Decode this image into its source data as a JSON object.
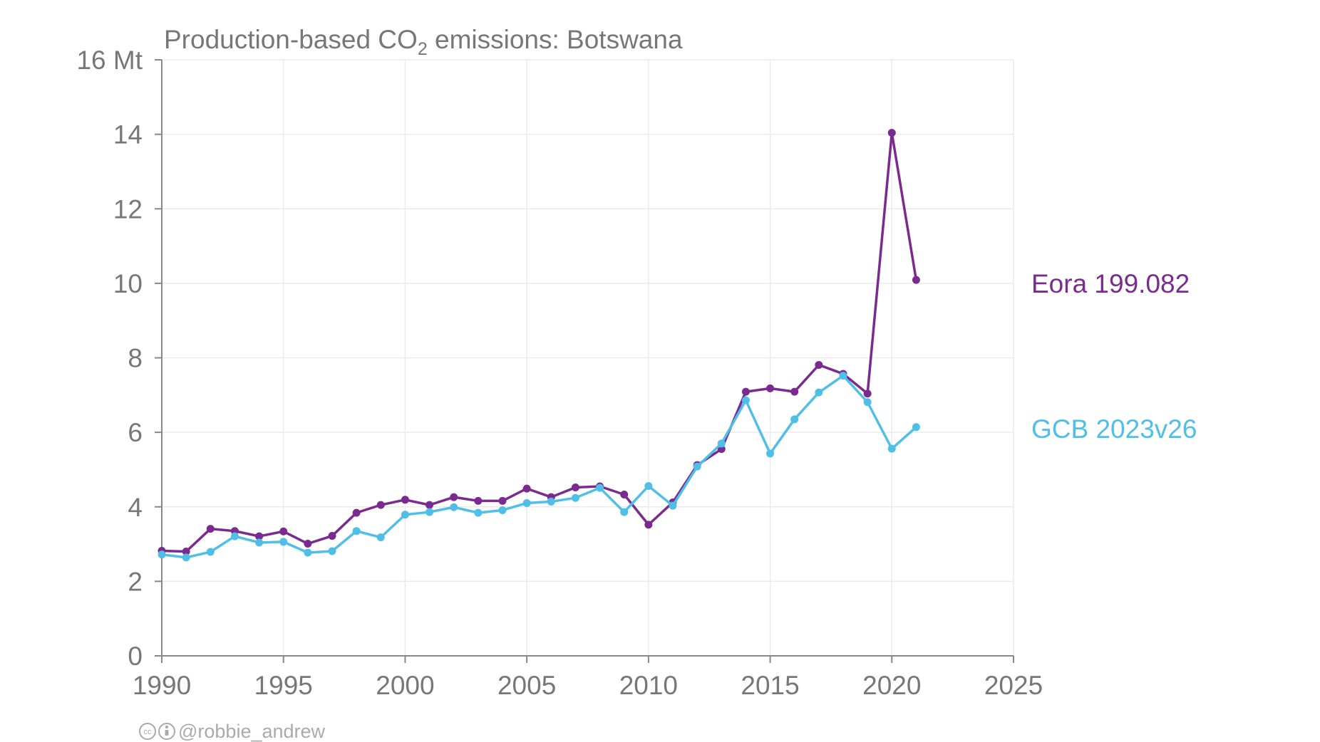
{
  "chart_data": {
    "type": "line",
    "title": {
      "prefix": "Production-based CO",
      "subscript": "2",
      "suffix": " emissions: Botswana"
    },
    "y_unit_label": "16 Mt",
    "ylim": [
      0,
      16
    ],
    "xlim": [
      1990,
      2025
    ],
    "y_ticks": [
      0,
      2,
      4,
      6,
      8,
      10,
      12,
      14,
      16
    ],
    "y_tick_labels": [
      "0",
      "2",
      "4",
      "6",
      "8",
      "10",
      "12",
      "14",
      "16 Mt"
    ],
    "x_ticks": [
      1990,
      1995,
      2000,
      2005,
      2010,
      2015,
      2020,
      2025
    ],
    "x_tick_labels": [
      "1990",
      "1995",
      "2000",
      "2005",
      "2010",
      "2015",
      "2020",
      "2025"
    ],
    "grid": true,
    "legend": "direct labels at right end of lines",
    "x": [
      1990,
      1991,
      1992,
      1993,
      1994,
      1995,
      1996,
      1997,
      1998,
      1999,
      2000,
      2001,
      2002,
      2003,
      2004,
      2005,
      2006,
      2007,
      2008,
      2009,
      2010,
      2011,
      2012,
      2013,
      2014,
      2015,
      2016,
      2017,
      2018,
      2019,
      2020,
      2021
    ],
    "series": [
      {
        "name": "Eora 199.082",
        "color": "#7b2a90",
        "label_value": 10,
        "values": [
          2.82,
          2.8,
          3.41,
          3.35,
          3.21,
          3.34,
          3.01,
          3.22,
          3.84,
          4.05,
          4.19,
          4.05,
          4.26,
          4.16,
          4.16,
          4.49,
          4.26,
          4.52,
          4.55,
          4.33,
          3.52,
          4.12,
          5.12,
          5.55,
          7.09,
          7.18,
          7.09,
          7.81,
          7.57,
          7.04,
          14.04,
          10.09
        ]
      },
      {
        "name": "GCB 2023v26",
        "color": "#4fbfe8",
        "label_value": 6.1,
        "values": [
          2.72,
          2.64,
          2.79,
          3.21,
          3.04,
          3.06,
          2.77,
          2.81,
          3.35,
          3.18,
          3.79,
          3.86,
          3.99,
          3.84,
          3.91,
          4.1,
          4.14,
          4.24,
          4.51,
          3.86,
          4.56,
          4.03,
          5.08,
          5.7,
          6.86,
          5.43,
          6.35,
          7.07,
          7.52,
          6.81,
          5.56,
          6.14
        ]
      }
    ]
  },
  "credit": {
    "cc_icon": "cc-icon",
    "by_icon": "attribution-icon",
    "text": "@robbie_andrew"
  }
}
